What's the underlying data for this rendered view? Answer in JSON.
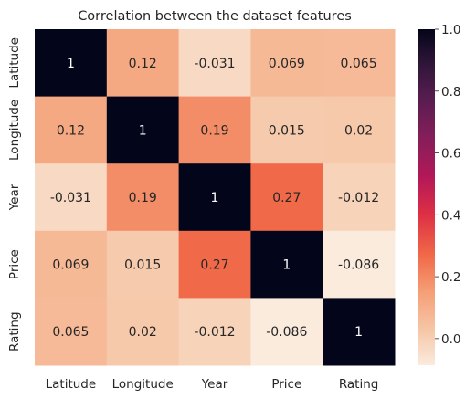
{
  "chart_data": {
    "type": "heatmap",
    "title": "Correlation between the dataset features",
    "x_categories": [
      "Latitude",
      "Longitude",
      "Year",
      "Price",
      "Rating"
    ],
    "y_categories": [
      "Latitude",
      "Longitude",
      "Year",
      "Price",
      "Rating"
    ],
    "values": [
      [
        1,
        0.12,
        -0.031,
        0.069,
        0.065
      ],
      [
        0.12,
        1,
        0.19,
        0.015,
        0.02
      ],
      [
        -0.031,
        0.19,
        1,
        0.27,
        -0.012
      ],
      [
        0.069,
        0.015,
        0.27,
        1,
        -0.086
      ],
      [
        0.065,
        0.02,
        -0.012,
        -0.086,
        1
      ]
    ],
    "cell_labels": [
      [
        "1",
        "0.12",
        "-0.031",
        "0.069",
        "0.065"
      ],
      [
        "0.12",
        "1",
        "0.19",
        "0.015",
        "0.02"
      ],
      [
        "-0.031",
        "0.19",
        "1",
        "0.27",
        "-0.012"
      ],
      [
        "0.069",
        "0.015",
        "0.27",
        "1",
        "-0.086"
      ],
      [
        "0.065",
        "0.02",
        "-0.012",
        "-0.086",
        "1"
      ]
    ],
    "colorbar": {
      "range": [
        -0.086,
        1
      ],
      "ticks": [
        0.0,
        0.2,
        0.4,
        0.6,
        0.8,
        1.0
      ],
      "tick_labels": [
        "0.0",
        "0.2",
        "0.4",
        "0.6",
        "0.8",
        "1.0"
      ],
      "colormap": "rocket_r"
    },
    "annotations": true,
    "grid": false
  }
}
